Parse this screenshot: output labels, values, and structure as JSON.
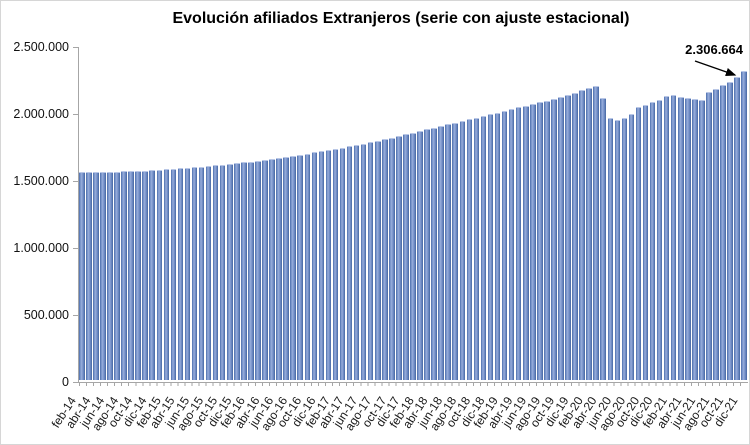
{
  "title": "Evolución afiliados Extranjeros (serie con ajuste estacional)",
  "annotation": {
    "label": "2.306.664"
  },
  "y_axis": {
    "tick_labels": [
      "2.500.000",
      "2.000.000",
      "1.500.000",
      "1.000.000",
      "500.000",
      "0"
    ]
  },
  "colors": {
    "bar_fill": "#7b95cc",
    "bar_edge": "#44669f",
    "bar_highlight": "#99aedb",
    "axis_line": "#a6a6a6",
    "text": "#1a1a1a",
    "annotation_arrow": "#000000"
  },
  "chart_data": {
    "type": "bar",
    "title": "Evolución afiliados Extranjeros (serie con ajuste estacional)",
    "xlabel": "",
    "ylabel": "",
    "ylim": [
      0,
      2500000
    ],
    "y_tick_step": 500000,
    "grid": false,
    "legend": "none",
    "x_label_every": 2,
    "annotation": {
      "text": "2.306.664",
      "target": "dic-21"
    },
    "x": [
      "feb-14",
      "mar-14",
      "abr-14",
      "may-14",
      "jun-14",
      "jul-14",
      "ago-14",
      "sep-14",
      "oct-14",
      "nov-14",
      "dic-14",
      "ene-15",
      "feb-15",
      "mar-15",
      "abr-15",
      "may-15",
      "jun-15",
      "jul-15",
      "ago-15",
      "sep-15",
      "oct-15",
      "nov-15",
      "dic-15",
      "ene-16",
      "feb-16",
      "mar-16",
      "abr-16",
      "may-16",
      "jun-16",
      "jul-16",
      "ago-16",
      "sep-16",
      "oct-16",
      "nov-16",
      "dic-16",
      "ene-17",
      "feb-17",
      "mar-17",
      "abr-17",
      "may-17",
      "jun-17",
      "jul-17",
      "ago-17",
      "sep-17",
      "oct-17",
      "nov-17",
      "dic-17",
      "ene-18",
      "feb-18",
      "mar-18",
      "abr-18",
      "may-18",
      "jun-18",
      "jul-18",
      "ago-18",
      "sep-18",
      "oct-18",
      "nov-18",
      "dic-18",
      "ene-19",
      "feb-19",
      "mar-19",
      "abr-19",
      "may-19",
      "jun-19",
      "jul-19",
      "ago-19",
      "sep-19",
      "oct-19",
      "nov-19",
      "dic-19",
      "ene-20",
      "feb-20",
      "mar-20",
      "abr-20",
      "may-20",
      "jun-20",
      "jul-20",
      "ago-20",
      "sep-20",
      "oct-20",
      "nov-20",
      "dic-20",
      "ene-21",
      "feb-21",
      "mar-21",
      "abr-21",
      "may-21",
      "jun-21",
      "jul-21",
      "ago-21",
      "sep-21",
      "oct-21",
      "nov-21",
      "dic-21"
    ],
    "values": [
      1556000,
      1552000,
      1550000,
      1551000,
      1553000,
      1555000,
      1557000,
      1559000,
      1561000,
      1563000,
      1566000,
      1569000,
      1572000,
      1576000,
      1580000,
      1584000,
      1588000,
      1592000,
      1597000,
      1602000,
      1607000,
      1612000,
      1618000,
      1624000,
      1630000,
      1637000,
      1644000,
      1651000,
      1658000,
      1666000,
      1674000,
      1682000,
      1690000,
      1699000,
      1708000,
      1716000,
      1725000,
      1734000,
      1743000,
      1752000,
      1761000,
      1773000,
      1785000,
      1797000,
      1809000,
      1821000,
      1833000,
      1846000,
      1858000,
      1871000,
      1883000,
      1896000,
      1908000,
      1921000,
      1933000,
      1946000,
      1958000,
      1971000,
      1984000,
      1996000,
      2009000,
      2021000,
      2034000,
      2046000,
      2059000,
      2072000,
      2085000,
      2098000,
      2112000,
      2126000,
      2142000,
      2162000,
      2180000,
      2193000,
      2102000,
      1958000,
      1940000,
      1952000,
      1985000,
      2035000,
      2052000,
      2072000,
      2093000,
      2117000,
      2127000,
      2110000,
      2102000,
      2097000,
      2091000,
      2152000,
      2174000,
      2203000,
      2226000,
      2263000,
      2306664
    ]
  }
}
